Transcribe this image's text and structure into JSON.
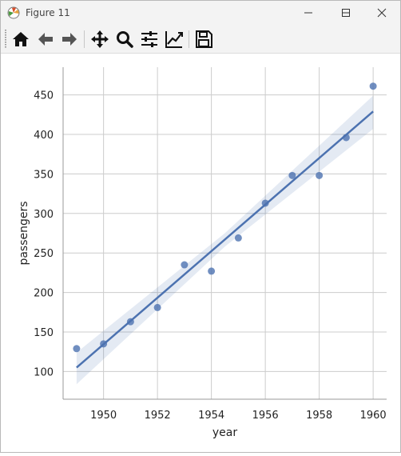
{
  "window": {
    "title": "Figure 11",
    "app_icon": "matplotlib-icon",
    "controls": [
      "minimize-icon",
      "maximize-icon",
      "close-icon"
    ]
  },
  "toolbar": {
    "buttons": [
      {
        "icon": "home-icon",
        "action": "home"
      },
      {
        "icon": "back-arrow-icon",
        "action": "back"
      },
      {
        "icon": "forward-arrow-icon",
        "action": "forward"
      },
      {
        "icon": "pan-icon",
        "action": "pan"
      },
      {
        "icon": "zoom-icon",
        "action": "zoom"
      },
      {
        "icon": "subplots-icon",
        "action": "configure-subplots"
      },
      {
        "icon": "edit-axis-icon",
        "action": "edit-axis"
      },
      {
        "icon": "save-icon",
        "action": "save"
      }
    ]
  },
  "chart_data": {
    "type": "scatter",
    "title": "",
    "xlabel": "year",
    "ylabel": "passengers",
    "xlim": [
      1948.5,
      1960.5
    ],
    "ylim": [
      65,
      485
    ],
    "xticks": [
      1950,
      1952,
      1954,
      1956,
      1958,
      1960
    ],
    "yticks": [
      100,
      150,
      200,
      250,
      300,
      350,
      400,
      450
    ],
    "grid": true,
    "x": [
      1949,
      1950,
      1951,
      1952,
      1953,
      1954,
      1955,
      1956,
      1957,
      1958,
      1959,
      1960
    ],
    "y": [
      129,
      135,
      163,
      181,
      235,
      227,
      269,
      313,
      348,
      348,
      396,
      461
    ],
    "regression": {
      "start": [
        1949,
        105
      ],
      "end": [
        1960,
        429
      ],
      "ci_lower_start": 84,
      "ci_upper_start": 124,
      "ci_lower_mid": 258,
      "ci_upper_mid": 275,
      "ci_lower_end": 407,
      "ci_upper_end": 449
    },
    "colors": {
      "points": "#4c72b0",
      "line": "#4c72b0",
      "band": "#4c72b0",
      "grid": "#cccccc"
    }
  }
}
